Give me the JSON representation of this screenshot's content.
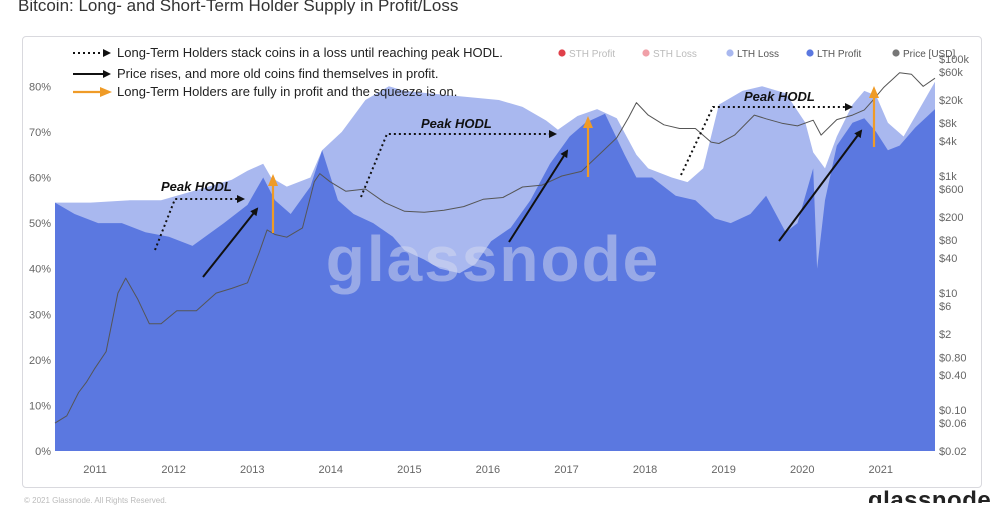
{
  "page_title": "Bitcoin: Long- and Short-Term Holder Supply in Profit/Loss",
  "watermark": "glassnode",
  "brand": "glassnode",
  "footnote": "© 2021 Glassnode. All Rights Reserved.",
  "colors": {
    "sth_profit": "#e0404a",
    "sth_loss": "#f0a0a8",
    "lth_loss": "#a9b8ef",
    "lth_profit": "#5b78e0",
    "price": "#777777",
    "arrow_orange": "#ef9b27",
    "arrow_black": "#111111"
  },
  "annotations": {
    "dotted": "Long-Term Holders stack coins in a loss until reaching peak HODL.",
    "black": "Price rises, and more old coins find themselves in profit.",
    "orange": "Long-Term Holders are fully in profit and the squeeze is on.",
    "peak_labels": [
      "Peak HODL",
      "Peak HODL",
      "Peak HODL"
    ]
  },
  "chart_data": {
    "type": "area",
    "title": "Bitcoin: Long- and Short-Term Holder Supply in Profit/Loss",
    "legend_position": "top-right",
    "grid": false,
    "x_ticks": [
      "2011",
      "2012",
      "2013",
      "2014",
      "2015",
      "2016",
      "2017",
      "2018",
      "2019",
      "2020",
      "2021"
    ],
    "y_ticks_left": [
      "0%",
      "10%",
      "20%",
      "30%",
      "40%",
      "50%",
      "60%",
      "70%",
      "80%"
    ],
    "y_ticks_right": [
      "$100k",
      "$60k",
      "$20k",
      "$8k",
      "$4k",
      "$1k",
      "$600",
      "$200",
      "$80",
      "$40",
      "$10",
      "$6",
      "$2",
      "$0.80",
      "$0.40",
      "$0.10",
      "$0.06",
      "$0.02"
    ],
    "ylim_left": [
      0,
      0.86
    ],
    "ylim_right_log": [
      0.02,
      100000
    ],
    "xlim": [
      2010.55,
      2021.75
    ],
    "series": [
      {
        "name": "STH Profit",
        "x": [],
        "values": []
      },
      {
        "name": "STH Loss",
        "x": [],
        "values": []
      },
      {
        "name": "LTH Loss",
        "x": [
          2010.55,
          2011.0,
          2011.5,
          2011.9,
          2012.3,
          2012.8,
          2013.0,
          2013.2,
          2013.3,
          2013.5,
          2013.8,
          2013.95,
          2014.2,
          2014.5,
          2014.8,
          2015.0,
          2015.3,
          2015.6,
          2015.9,
          2016.2,
          2016.5,
          2016.8,
          2016.95,
          2017.2,
          2017.45,
          2017.7,
          2017.95,
          2018.1,
          2018.4,
          2018.6,
          2018.8,
          2019.0,
          2019.3,
          2019.55,
          2019.85,
          2020.1,
          2020.2,
          2020.35,
          2020.5,
          2020.7,
          2020.85,
          2021.0,
          2021.15,
          2021.35,
          2021.55,
          2021.75
        ],
        "values": [
          0.545,
          0.545,
          0.55,
          0.55,
          0.57,
          0.595,
          0.615,
          0.63,
          0.6,
          0.58,
          0.6,
          0.66,
          0.7,
          0.77,
          0.8,
          0.79,
          0.785,
          0.78,
          0.775,
          0.77,
          0.755,
          0.725,
          0.705,
          0.735,
          0.75,
          0.73,
          0.65,
          0.62,
          0.6,
          0.59,
          0.62,
          0.76,
          0.79,
          0.8,
          0.785,
          0.72,
          0.655,
          0.62,
          0.69,
          0.76,
          0.79,
          0.78,
          0.72,
          0.69,
          0.75,
          0.81
        ]
      },
      {
        "name": "LTH Profit",
        "x": [
          2010.55,
          2010.8,
          2011.1,
          2011.4,
          2011.7,
          2012.0,
          2012.3,
          2012.7,
          2013.0,
          2013.2,
          2013.35,
          2013.55,
          2013.8,
          2013.95,
          2014.15,
          2014.35,
          2014.6,
          2014.85,
          2015.0,
          2015.25,
          2015.45,
          2015.7,
          2015.9,
          2016.1,
          2016.35,
          2016.6,
          2016.85,
          2017.1,
          2017.3,
          2017.55,
          2017.8,
          2017.95,
          2018.15,
          2018.45,
          2018.7,
          2018.95,
          2019.15,
          2019.4,
          2019.6,
          2019.85,
          2020.0,
          2020.2,
          2020.25,
          2020.35,
          2020.5,
          2020.7,
          2020.85,
          2021.0,
          2021.15,
          2021.3,
          2021.5,
          2021.75
        ],
        "values": [
          0.545,
          0.52,
          0.5,
          0.5,
          0.48,
          0.47,
          0.45,
          0.5,
          0.54,
          0.6,
          0.55,
          0.52,
          0.58,
          0.66,
          0.55,
          0.52,
          0.5,
          0.47,
          0.44,
          0.42,
          0.4,
          0.39,
          0.41,
          0.46,
          0.49,
          0.55,
          0.63,
          0.69,
          0.72,
          0.74,
          0.65,
          0.6,
          0.6,
          0.56,
          0.55,
          0.51,
          0.5,
          0.52,
          0.56,
          0.48,
          0.5,
          0.62,
          0.4,
          0.55,
          0.67,
          0.72,
          0.73,
          0.7,
          0.66,
          0.67,
          0.71,
          0.75
        ]
      },
      {
        "name": "Price [USD]",
        "x": [
          2010.55,
          2010.7,
          2010.85,
          2010.95,
          2011.05,
          2011.2,
          2011.35,
          2011.45,
          2011.6,
          2011.75,
          2011.9,
          2012.1,
          2012.35,
          2012.6,
          2012.8,
          2013.0,
          2013.15,
          2013.25,
          2013.35,
          2013.5,
          2013.7,
          2013.85,
          2013.92,
          2014.05,
          2014.25,
          2014.5,
          2014.75,
          2015.0,
          2015.25,
          2015.5,
          2015.75,
          2016.0,
          2016.25,
          2016.5,
          2016.75,
          2017.0,
          2017.25,
          2017.5,
          2017.7,
          2017.85,
          2017.95,
          2018.1,
          2018.3,
          2018.5,
          2018.7,
          2018.9,
          2019.0,
          2019.2,
          2019.45,
          2019.6,
          2019.8,
          2020.0,
          2020.2,
          2020.3,
          2020.5,
          2020.7,
          2020.85,
          2020.95,
          2021.1,
          2021.3,
          2021.45,
          2021.6,
          2021.75
        ],
        "values": [
          0.06,
          0.08,
          0.2,
          0.3,
          0.5,
          1,
          10,
          18,
          8,
          3,
          3,
          5,
          5,
          10,
          12,
          15,
          50,
          120,
          100,
          90,
          130,
          800,
          1100,
          800,
          550,
          600,
          350,
          250,
          240,
          260,
          300,
          400,
          430,
          650,
          700,
          1000,
          1200,
          2500,
          4500,
          10000,
          18000,
          11000,
          7500,
          6500,
          6500,
          3800,
          3600,
          5000,
          11000,
          9500,
          8000,
          7200,
          9000,
          5000,
          9200,
          11000,
          13500,
          19000,
          33000,
          58000,
          55000,
          34000,
          47000
        ]
      }
    ]
  }
}
